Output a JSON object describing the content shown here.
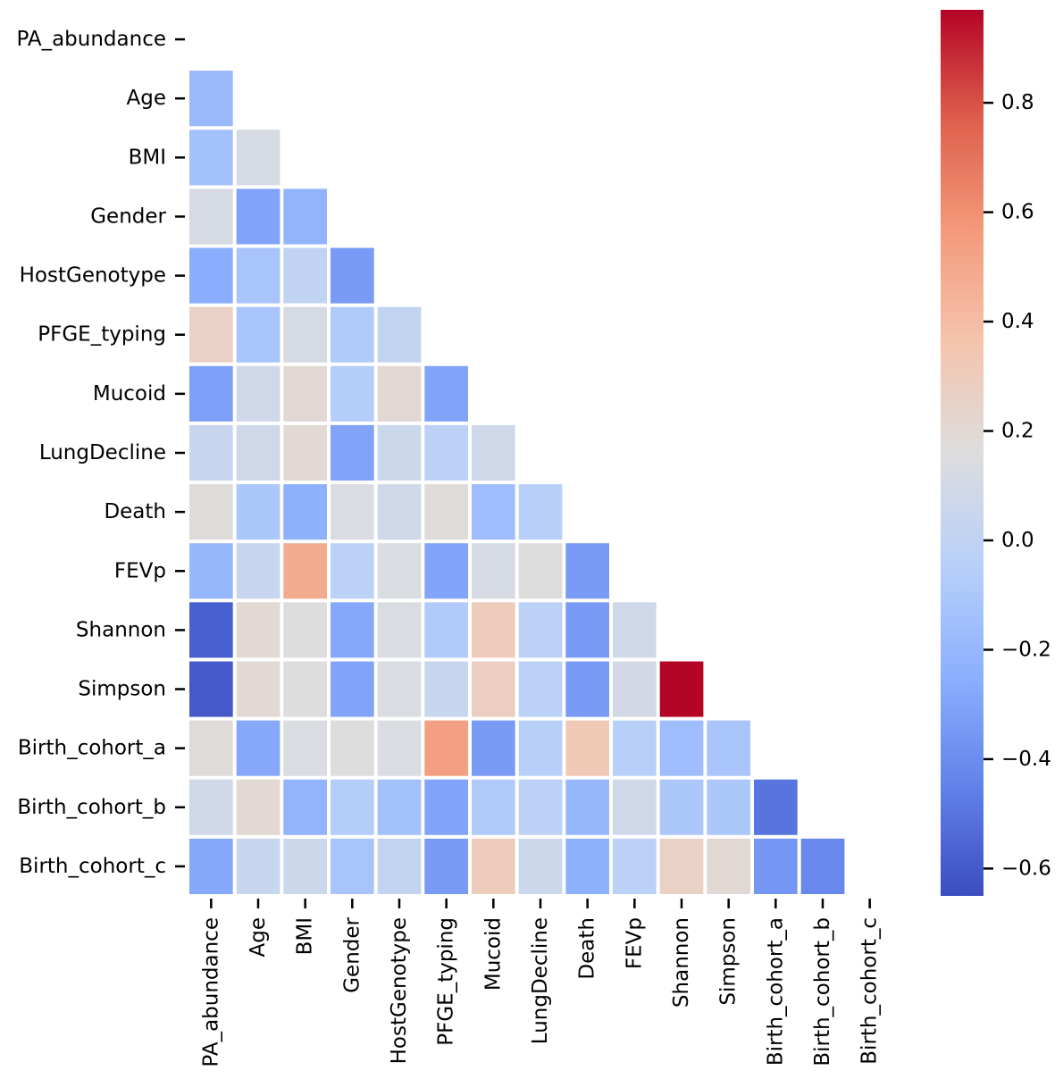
{
  "chart_data": {
    "type": "heatmap",
    "title": "",
    "xlabel": "",
    "ylabel": "",
    "variables": [
      "PA_abundance",
      "Age",
      "BMI",
      "Gender",
      "HostGenotype",
      "PFGE_typing",
      "Mucoid",
      "LungDecline",
      "Death",
      "FEVp",
      "Shannon",
      "Simpson",
      "Birth_cohort_a",
      "Birth_cohort_b",
      "Birth_cohort_c"
    ],
    "mask": "upper-triangle-including-diagonal",
    "matrix": [
      [
        null,
        null,
        null,
        null,
        null,
        null,
        null,
        null,
        null,
        null,
        null,
        null,
        null,
        null,
        null
      ],
      [
        -0.18,
        null,
        null,
        null,
        null,
        null,
        null,
        null,
        null,
        null,
        null,
        null,
        null,
        null,
        null
      ],
      [
        -0.14,
        0.12,
        null,
        null,
        null,
        null,
        null,
        null,
        null,
        null,
        null,
        null,
        null,
        null,
        null
      ],
      [
        0.12,
        -0.3,
        -0.22,
        null,
        null,
        null,
        null,
        null,
        null,
        null,
        null,
        null,
        null,
        null,
        null
      ],
      [
        -0.26,
        -0.12,
        0.0,
        -0.34,
        null,
        null,
        null,
        null,
        null,
        null,
        null,
        null,
        null,
        null,
        null
      ],
      [
        0.26,
        -0.12,
        0.12,
        -0.08,
        0.02,
        null,
        null,
        null,
        null,
        null,
        null,
        null,
        null,
        null,
        null
      ],
      [
        -0.32,
        0.08,
        0.2,
        -0.06,
        0.2,
        -0.3,
        null,
        null,
        null,
        null,
        null,
        null,
        null,
        null,
        null
      ],
      [
        0.04,
        0.08,
        0.2,
        -0.3,
        0.06,
        -0.02,
        0.08,
        null,
        null,
        null,
        null,
        null,
        null,
        null,
        null
      ],
      [
        0.18,
        -0.1,
        -0.24,
        0.14,
        0.08,
        0.18,
        -0.16,
        -0.04,
        null,
        null,
        null,
        null,
        null,
        null,
        null
      ],
      [
        -0.2,
        0.04,
        0.48,
        -0.02,
        0.14,
        -0.3,
        0.12,
        0.16,
        -0.34,
        null,
        null,
        null,
        null,
        null,
        null
      ],
      [
        -0.58,
        0.2,
        0.16,
        -0.28,
        0.14,
        -0.08,
        0.3,
        -0.02,
        -0.34,
        0.08,
        null,
        null,
        null,
        null,
        null
      ],
      [
        -0.6,
        0.2,
        0.16,
        -0.3,
        0.14,
        0.04,
        0.28,
        -0.02,
        -0.34,
        0.1,
        0.97,
        null,
        null,
        null,
        null
      ],
      [
        0.18,
        -0.28,
        0.14,
        0.16,
        0.14,
        0.54,
        -0.34,
        -0.04,
        0.32,
        -0.04,
        -0.16,
        -0.12,
        null,
        null,
        null
      ],
      [
        0.08,
        0.2,
        -0.22,
        -0.06,
        -0.14,
        -0.3,
        -0.08,
        -0.02,
        -0.2,
        0.08,
        -0.1,
        -0.1,
        -0.5,
        null,
        null
      ],
      [
        -0.28,
        0.04,
        0.06,
        -0.12,
        0.02,
        -0.34,
        0.3,
        0.06,
        -0.24,
        -0.02,
        0.26,
        0.2,
        -0.36,
        -0.42,
        null
      ]
    ],
    "colorbar": {
      "cmap": "coolwarm",
      "vmin": -0.65,
      "vmax": 0.97,
      "ticks": [
        -0.6,
        -0.4,
        -0.2,
        0.0,
        0.2,
        0.4,
        0.6,
        0.8
      ],
      "tick_labels": [
        "−0.6",
        "−0.4",
        "−0.2",
        "0.0",
        "0.2",
        "0.4",
        "0.6",
        "0.8"
      ]
    }
  }
}
